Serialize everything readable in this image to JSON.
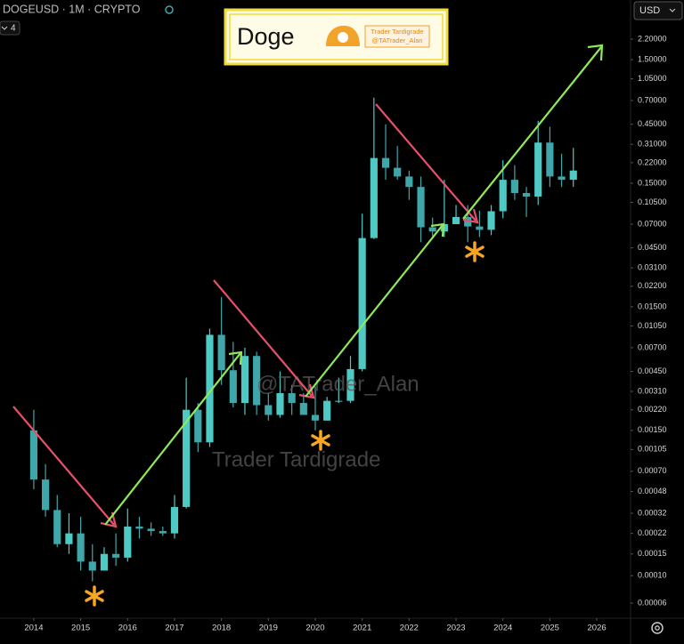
{
  "chart_data": {
    "type": "candlestick",
    "title": "DOGEUSD · 1M · CRYPTO",
    "currency": "USD",
    "indicator_count": "4",
    "badge": {
      "title": "Doge",
      "name": "Trader Tardigrade",
      "handle": "@TATrader_Alan"
    },
    "watermarks": [
      "@TATrader_Alan",
      "Trader Tardigrade"
    ],
    "log_scale": true,
    "grid": false,
    "up_color": "#4ec9c4",
    "down_color": "#3fa6aa",
    "x": [
      2014.0,
      2014.25,
      2014.5,
      2014.75,
      2015.0,
      2015.25,
      2015.5,
      2015.75,
      2016.0,
      2016.25,
      2016.5,
      2016.75,
      2017.0,
      2017.25,
      2017.5,
      2017.75,
      2018.0,
      2018.25,
      2018.5,
      2018.75,
      2019.0,
      2019.25,
      2019.5,
      2019.75,
      2020.0,
      2020.25,
      2020.5,
      2020.75,
      2021.0,
      2021.25,
      2021.5,
      2021.75,
      2022.0,
      2022.25,
      2022.5,
      2022.75,
      2023.0,
      2023.25,
      2023.5,
      2023.75,
      2024.0,
      2024.25,
      2024.5,
      2024.75,
      2025.0,
      2025.25,
      2025.5
    ],
    "open": [
      0.0015,
      0.0006,
      0.00034,
      0.00018,
      0.00022,
      0.00013,
      0.00011,
      0.00015,
      0.00014,
      0.00025,
      0.00024,
      0.00023,
      0.00022,
      0.00036,
      0.0022,
      0.0012,
      0.0089,
      0.0046,
      0.0025,
      0.006,
      0.0024,
      0.002,
      0.003,
      0.0025,
      0.002,
      0.0018,
      0.0026,
      0.0026,
      0.0047,
      0.054,
      0.24,
      0.2,
      0.17,
      0.14,
      0.066,
      0.061,
      0.07,
      0.08,
      0.067,
      0.063,
      0.089,
      0.16,
      0.125,
      0.117,
      0.32,
      0.17,
      0.16
    ],
    "high": [
      0.0022,
      0.0008,
      0.00045,
      0.00032,
      0.0003,
      0.00018,
      0.00017,
      0.00022,
      0.00035,
      0.0003,
      0.00027,
      0.00025,
      0.00045,
      0.004,
      0.0025,
      0.01,
      0.018,
      0.0078,
      0.007,
      0.0065,
      0.003,
      0.0045,
      0.0035,
      0.003,
      0.0034,
      0.0028,
      0.004,
      0.006,
      0.085,
      0.74,
      0.45,
      0.3,
      0.19,
      0.17,
      0.079,
      0.16,
      0.1,
      0.1,
      0.09,
      0.1,
      0.23,
      0.21,
      0.14,
      0.48,
      0.43,
      0.26,
      0.29
    ],
    "low": [
      0.0005,
      0.0003,
      0.00017,
      0.00015,
      0.00011,
      9e-05,
      0.00011,
      0.00012,
      0.00013,
      0.0002,
      0.00021,
      0.00021,
      0.0002,
      0.00035,
      0.001,
      0.0011,
      0.0035,
      0.0023,
      0.002,
      0.002,
      0.0018,
      0.0019,
      0.002,
      0.002,
      0.0015,
      0.0018,
      0.0025,
      0.0025,
      0.0045,
      0.053,
      0.16,
      0.16,
      0.11,
      0.05,
      0.056,
      0.055,
      0.07,
      0.05,
      0.055,
      0.057,
      0.078,
      0.11,
      0.08,
      0.1,
      0.14,
      0.14,
      0.14
    ],
    "close": [
      0.0006,
      0.00034,
      0.00018,
      0.00022,
      0.00013,
      0.00011,
      0.00015,
      0.00014,
      0.00025,
      0.00024,
      0.00023,
      0.00022,
      0.00036,
      0.0022,
      0.0012,
      0.0089,
      0.0046,
      0.0025,
      0.006,
      0.0024,
      0.002,
      0.003,
      0.0025,
      0.002,
      0.0018,
      0.0026,
      0.0026,
      0.0047,
      0.054,
      0.24,
      0.2,
      0.17,
      0.14,
      0.066,
      0.061,
      0.07,
      0.08,
      0.067,
      0.063,
      0.089,
      0.16,
      0.125,
      0.117,
      0.32,
      0.17,
      0.16,
      0.19
    ],
    "xlim": [
      2013.28,
      2026.72
    ],
    "xticks": [
      2014,
      2015,
      2016,
      2017,
      2018,
      2019,
      2020,
      2021,
      2022,
      2023,
      2024,
      2025,
      2026
    ],
    "ylim": [
      4.92e-05,
      4.56
    ],
    "yticks": [
      {
        "value": 2.2,
        "label": "2.20000"
      },
      {
        "value": 1.5,
        "label": "1.50000"
      },
      {
        "value": 1.05,
        "label": "1.05000"
      },
      {
        "value": 0.7,
        "label": "0.70000"
      },
      {
        "value": 0.45,
        "label": "0.45000"
      },
      {
        "value": 0.31,
        "label": "0.31000"
      },
      {
        "value": 0.22,
        "label": "0.22000"
      },
      {
        "value": 0.15,
        "label": "0.15000"
      },
      {
        "value": 0.105,
        "label": "0.10500"
      },
      {
        "value": 0.07,
        "label": "0.07000"
      },
      {
        "value": 0.045,
        "label": "0.04500"
      },
      {
        "value": 0.031,
        "label": "0.03100"
      },
      {
        "value": 0.022,
        "label": "0.02200"
      },
      {
        "value": 0.015,
        "label": "0.01500"
      },
      {
        "value": 0.0105,
        "label": "0.01050"
      },
      {
        "value": 0.007,
        "label": "0.00700"
      },
      {
        "value": 0.0045,
        "label": "0.00450"
      },
      {
        "value": 0.0031,
        "label": "0.00310"
      },
      {
        "value": 0.0022,
        "label": "0.00220"
      },
      {
        "value": 0.0015,
        "label": "0.00150"
      },
      {
        "value": 0.00105,
        "label": "0.00105"
      },
      {
        "value": 0.0007,
        "label": "0.00070"
      },
      {
        "value": 0.00048,
        "label": "0.00048"
      },
      {
        "value": 0.00032,
        "label": "0.00032"
      },
      {
        "value": 0.00022,
        "label": "0.00022"
      },
      {
        "value": 0.00015,
        "label": "0.00015"
      },
      {
        "value": 0.0001,
        "label": "0.00010"
      },
      {
        "value": 6e-05,
        "label": "0.00006"
      }
    ]
  }
}
